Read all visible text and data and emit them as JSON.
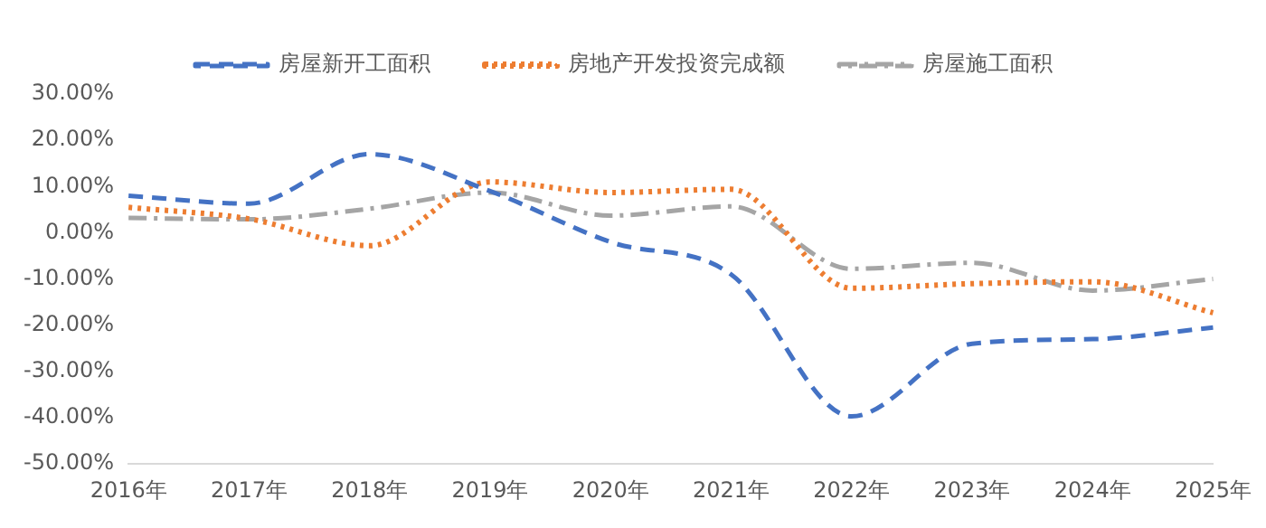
{
  "chart_data": {
    "type": "line",
    "categories": [
      "2016年",
      "2017年",
      "2018年",
      "2019年",
      "2020年",
      "2021年",
      "2022年",
      "2023年",
      "2024年",
      "2025年"
    ],
    "series": [
      {
        "name": "房屋新开工面积",
        "color": "#4472c4",
        "line_style": "dashed",
        "values": [
          8,
          6.3,
          17,
          9,
          -2,
          -9,
          -39.7,
          -24,
          -23,
          -20.5
        ]
      },
      {
        "name": "房地产开发投资完成额",
        "color": "#ed7d31",
        "line_style": "dotted",
        "values": [
          5.5,
          3,
          -2.8,
          11,
          8.7,
          9.4,
          -12,
          -11,
          -10.6,
          -17.3
        ]
      },
      {
        "name": "房屋施工面积",
        "color": "#a5a5a5",
        "line_style": "dashdot",
        "values": [
          3.2,
          2.9,
          5.2,
          8.7,
          3.7,
          5.7,
          -7.8,
          -6.5,
          -12.5,
          -10
        ]
      }
    ],
    "ylim": [
      -50,
      30
    ],
    "yticks": [
      {
        "value": -50,
        "label": "-50.00%"
      },
      {
        "value": -40,
        "label": "-40.00%"
      },
      {
        "value": -30,
        "label": "-30.00%"
      },
      {
        "value": -20,
        "label": "-20.00%"
      },
      {
        "value": -10,
        "label": "-10.00%"
      },
      {
        "value": 0,
        "label": "0.00%"
      },
      {
        "value": 10,
        "label": "10.00%"
      },
      {
        "value": 20,
        "label": "20.00%"
      },
      {
        "value": 30,
        "label": "30.00%"
      }
    ],
    "grid": false,
    "legend": "top",
    "marker": "none"
  }
}
